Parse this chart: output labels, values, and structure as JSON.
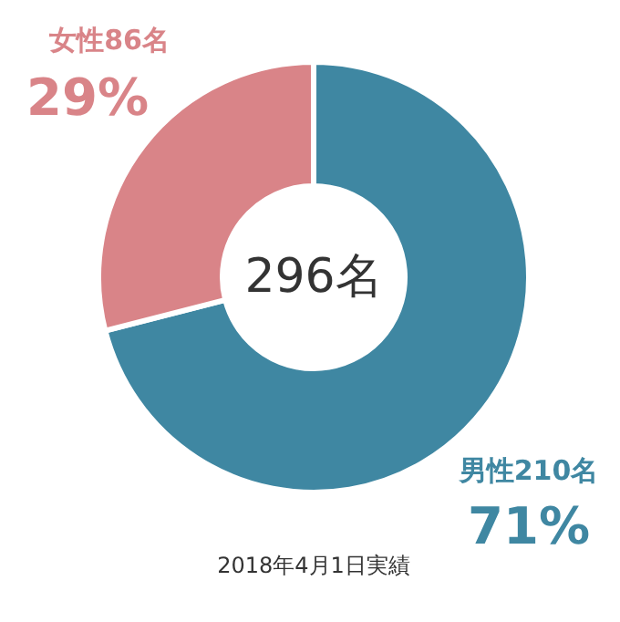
{
  "chart_data": {
    "type": "donut",
    "categories": [
      "男性210名",
      "女性86名"
    ],
    "values": [
      71,
      29
    ],
    "colors": [
      "#3f87a2",
      "#d98488"
    ],
    "value_labels": [
      "71%",
      "29%"
    ],
    "annotations": [
      "296名",
      "2018年4月1日実績"
    ]
  }
}
